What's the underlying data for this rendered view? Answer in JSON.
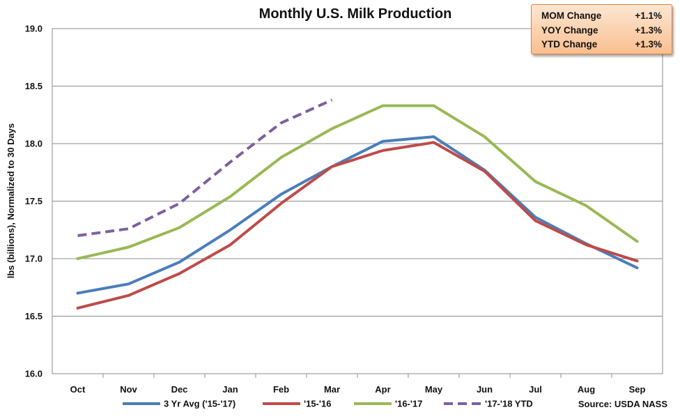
{
  "chart_data": {
    "type": "line",
    "title": "Monthly U.S. Milk Production",
    "ylabel": "lbs (billions), Normalized to 30 Days",
    "xlabel": "",
    "categories": [
      "Oct",
      "Nov",
      "Dec",
      "Jan",
      "Feb",
      "Mar",
      "Apr",
      "May",
      "Jun",
      "Jul",
      "Aug",
      "Sep"
    ],
    "ylim": [
      16.0,
      19.0
    ],
    "yticks": [
      "16.0",
      "16.5",
      "17.0",
      "17.5",
      "18.0",
      "18.5",
      "19.0"
    ],
    "grid": true,
    "legend_position": "bottom",
    "series": [
      {
        "name": "3 Yr Avg ('15-'17)",
        "color": "#4a7ebb",
        "dashed": false,
        "values": [
          16.7,
          16.78,
          16.97,
          17.25,
          17.56,
          17.8,
          18.02,
          18.06,
          17.77,
          17.36,
          17.13,
          16.92
        ]
      },
      {
        "name": "'15-'16",
        "color": "#be4b48",
        "dashed": false,
        "values": [
          16.57,
          16.68,
          16.87,
          17.12,
          17.48,
          17.8,
          17.94,
          18.01,
          17.76,
          17.33,
          17.12,
          16.98
        ]
      },
      {
        "name": "'16-'17",
        "color": "#98b954",
        "dashed": false,
        "values": [
          17.0,
          17.1,
          17.27,
          17.54,
          17.88,
          18.13,
          18.33,
          18.33,
          18.06,
          17.67,
          17.46,
          17.15
        ]
      },
      {
        "name": "'17-'18 YTD",
        "color": "#7d60a0",
        "dashed": true,
        "values": [
          17.2,
          17.26,
          17.48,
          17.84,
          18.18,
          18.38,
          null,
          null,
          null,
          null,
          null,
          null
        ]
      }
    ]
  },
  "stats": [
    {
      "label": "MOM Change",
      "value": "+1.1%"
    },
    {
      "label": "YOY Change",
      "value": "+1.3%"
    },
    {
      "label": "YTD Change",
      "value": "+1.3%"
    }
  ],
  "source": "Source: USDA NASS"
}
